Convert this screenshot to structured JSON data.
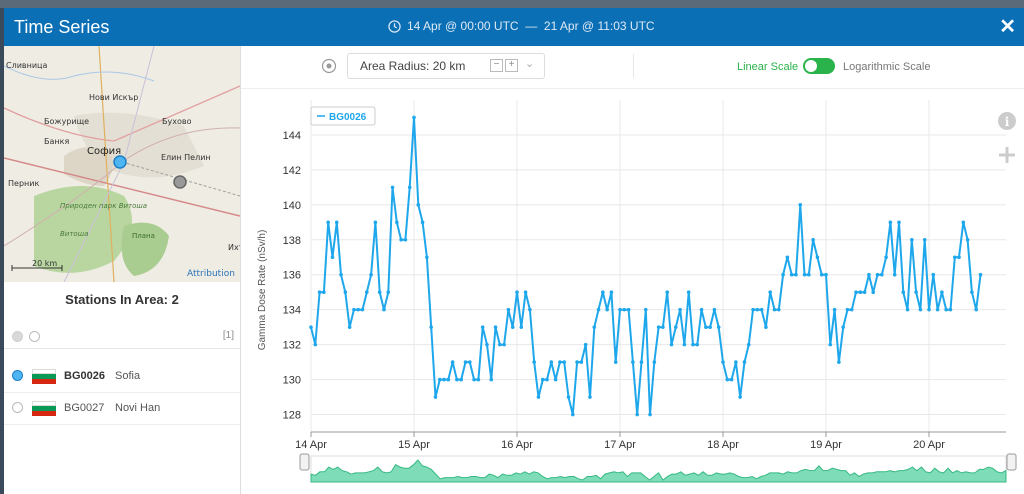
{
  "window": {
    "title": "Time Series",
    "date_range": "14 Apr @ 00:00 UTC  —  21 Apr @ 11:03 UTC"
  },
  "map": {
    "labels": [
      "Нови Искър",
      "Сливница",
      "Божурище",
      "Бухово",
      "Банкя",
      "София",
      "Елин Пелин",
      "Перник",
      "Природен парк Витоша",
      "Витоша",
      "Плана",
      "Ихт"
    ],
    "scale": "20 km",
    "attribution": "Attribution"
  },
  "stations": {
    "title": "Stations In Area: 2",
    "count_badge": "[1]",
    "items": [
      {
        "id": "BG0026",
        "name": "Sofia",
        "selected": true
      },
      {
        "id": "BG0027",
        "name": "Novi Han",
        "selected": false
      }
    ]
  },
  "toolbar": {
    "radius_label": "Area Radius: 20 km",
    "linear_label": "Linear Scale",
    "log_label": "Logarithmic Scale"
  },
  "colors": {
    "brand": "#0a6fb5",
    "series": "#1fa7ec",
    "toggle_on": "#2ab34a",
    "navigator_fill": "#5fd3a6"
  },
  "chart_data": {
    "type": "line",
    "title": "",
    "xlabel": "",
    "ylabel": "Gamma Dose Rate (nSv/h)",
    "ylim": [
      127,
      146
    ],
    "yticks": [
      128,
      130,
      132,
      134,
      136,
      138,
      140,
      142,
      144
    ],
    "xticks": [
      "14 Apr",
      "15 Apr",
      "16 Apr",
      "17 Apr",
      "18 Apr",
      "19 Apr",
      "20 Apr"
    ],
    "xlim_days": [
      0,
      6.8
    ],
    "grid": true,
    "legend": "top-left",
    "series": [
      {
        "name": "BG0026",
        "start": "14 Apr @ 00:00 UTC",
        "step_hours": 1,
        "values": [
          133,
          132,
          135,
          135,
          139,
          137,
          139,
          136,
          135,
          133,
          134,
          134,
          134,
          135,
          136,
          139,
          135,
          134,
          135,
          141,
          139,
          138,
          138,
          141,
          145,
          140,
          139,
          137,
          133,
          129,
          130,
          130,
          130,
          131,
          130,
          130,
          131,
          131,
          130,
          130,
          133,
          132,
          130,
          133,
          132,
          132,
          134,
          133,
          135,
          133,
          135,
          134,
          131,
          129,
          130,
          130,
          131,
          130,
          131,
          131,
          129,
          128,
          131,
          131,
          132,
          129,
          133,
          134,
          135,
          134,
          135,
          131,
          134,
          134,
          134,
          131,
          128,
          131,
          134,
          128,
          131,
          133,
          133,
          135,
          132,
          133,
          134,
          132,
          135,
          132,
          132,
          134,
          133,
          133,
          134,
          133,
          131,
          130,
          130,
          131,
          129,
          131,
          132,
          134,
          134,
          134,
          133,
          135,
          134,
          134,
          136,
          137,
          136,
          136,
          140,
          136,
          136,
          138,
          137,
          136,
          136,
          132,
          134,
          131,
          133,
          134,
          134,
          135,
          135,
          135,
          136,
          135,
          136,
          136,
          137,
          139,
          136,
          139,
          135,
          134,
          138,
          135,
          134,
          138,
          134,
          136,
          134,
          135,
          134,
          134,
          137,
          137,
          139,
          138,
          135,
          134,
          136
        ]
      }
    ]
  }
}
